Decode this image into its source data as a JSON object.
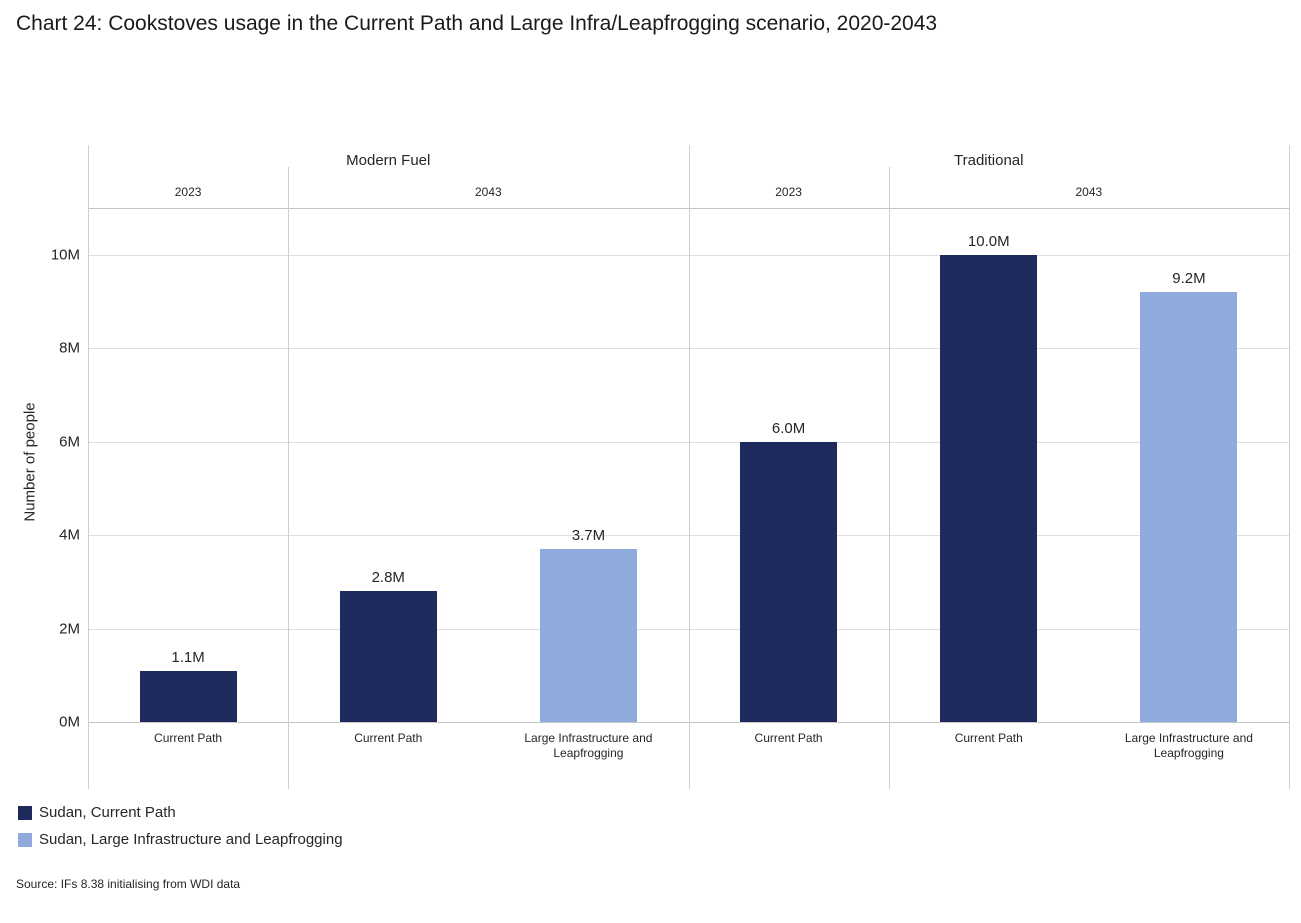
{
  "title": "Chart 24: Cookstoves usage in the Current Path and Large Infra/Leapfrogging scenario, 2020-2043",
  "source": "Source: IFs 8.38 initialising from WDI data",
  "colors": {
    "current_path": "#1E2A5C",
    "large_infrastructure": "#8FAADC",
    "gridline": "#E0E0E0",
    "divider": "#CFCFCF",
    "axis_line": "#C6C6C6"
  },
  "legend": {
    "items": [
      {
        "label": "Sudan, Current Path",
        "color": "#1E2A5C"
      },
      {
        "label": "Sudan, Large Infrastructure and Leapfrogging",
        "color": "#8FAADC"
      }
    ]
  },
  "chart_data": {
    "type": "bar",
    "title": "Chart 24: Cookstoves usage in the Current Path and Large Infra/Leapfrogging scenario, 2020-2043",
    "ylabel": "Number of people",
    "ylim": [
      0,
      11
    ],
    "ytick_step": 2,
    "yticks": [
      "0M",
      "2M",
      "4M",
      "6M",
      "8M",
      "10M"
    ],
    "grid": true,
    "legend_position": "bottom-left",
    "groups": [
      {
        "fuel": "Modern Fuel",
        "year": "2023",
        "bars": [
          {
            "series": "Sudan, Current Path",
            "category": "Current Path",
            "value": 1.1,
            "label": "1.1M",
            "color": "#1E2A5C"
          }
        ]
      },
      {
        "fuel": "Modern Fuel",
        "year": "2043",
        "bars": [
          {
            "series": "Sudan, Current Path",
            "category": "Current Path",
            "value": 2.8,
            "label": "2.8M",
            "color": "#1E2A5C"
          },
          {
            "series": "Sudan, Large Infrastructure and Leapfrogging",
            "category": "Large Infrastructure and Leapfrogging",
            "value": 3.7,
            "label": "3.7M",
            "color": "#8FAADC"
          }
        ]
      },
      {
        "fuel": "Traditional",
        "year": "2023",
        "bars": [
          {
            "series": "Sudan, Current Path",
            "category": "Current Path",
            "value": 6.0,
            "label": "6.0M",
            "color": "#1E2A5C"
          }
        ]
      },
      {
        "fuel": "Traditional",
        "year": "2043",
        "bars": [
          {
            "series": "Sudan, Current Path",
            "category": "Current Path",
            "value": 10.0,
            "label": "10.0M",
            "color": "#1E2A5C"
          },
          {
            "series": "Sudan, Large Infrastructure and Leapfrogging",
            "category": "Large Infrastructure and Leapfrogging",
            "value": 9.2,
            "label": "9.2M",
            "color": "#8FAADC"
          }
        ]
      }
    ]
  }
}
